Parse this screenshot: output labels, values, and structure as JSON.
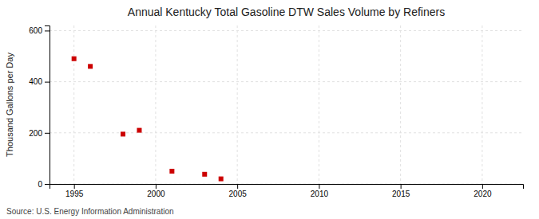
{
  "chart_data": {
    "type": "scatter",
    "title": "Annual Kentucky Total Gasoline DTW Sales Volume by Refiners",
    "ylabel": "Thousand Gallons per Day",
    "source": "Source: U.S. Energy Information Administration",
    "x": [
      1995,
      1996,
      1998,
      1999,
      2001,
      2003,
      2004
    ],
    "values": [
      490,
      460,
      195,
      210,
      50,
      38,
      20
    ],
    "color": "#cc0000",
    "marker": "square",
    "xlim": [
      1993.5,
      2022.5
    ],
    "ylim": [
      0,
      620
    ],
    "xticks": [
      1995,
      2000,
      2005,
      2010,
      2015,
      2020
    ],
    "yticks": [
      0,
      200,
      400,
      600
    ],
    "grid": true
  }
}
